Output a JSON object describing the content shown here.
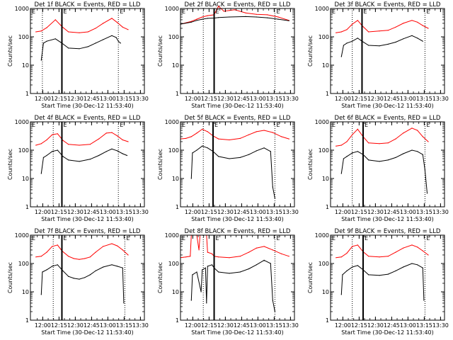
{
  "figure": {
    "event_marker_left": "E",
    "event_marker_right": "E"
  },
  "chart_data": [
    {
      "type": "line",
      "title": "Det 1f BLACK = Events, RED = LLD",
      "xlabel": "Start Time (30-Dec-12 11:53:40)",
      "ylabel": "Counts/sec",
      "x_ticks": [
        "12:00",
        "12:15",
        "12:30",
        "12:45",
        "13:00",
        "13:15",
        "13:30"
      ],
      "y_ticks": [
        "1",
        "10",
        "100",
        "1000"
      ],
      "xlim_min": [
        -5,
        100
      ],
      "ylim": [
        1,
        1000
      ],
      "y_scale": "log",
      "vlines_dotted_min": [
        6,
        76
      ],
      "vline_solid_min": [
        24
      ],
      "series": [
        {
          "name": "LLD",
          "color": "#ff0000",
          "x": [
            0,
            5,
            10,
            18,
            24,
            30,
            40,
            48,
            55,
            62,
            70,
            75,
            80,
            85
          ],
          "y": [
            150,
            160,
            210,
            400,
            230,
            150,
            140,
            150,
            200,
            300,
            450,
            320,
            220,
            180
          ]
        },
        {
          "name": "Events",
          "color": "#000000",
          "x": [
            5,
            7,
            10,
            18,
            24,
            30,
            40,
            48,
            55,
            62,
            70,
            74,
            76,
            78
          ],
          "y": [
            15,
            60,
            70,
            85,
            60,
            40,
            38,
            45,
            60,
            80,
            110,
            95,
            70,
            60
          ]
        }
      ]
    },
    {
      "type": "line",
      "title": "Det 2f BLACK = Events, RED = LLD",
      "xlabel": "Start Time (30-Dec-12 11:53:40)",
      "ylabel": "Counts/sec",
      "x_ticks": [
        "12:00",
        "12:15",
        "12:30",
        "12:45",
        "13:00",
        "13:15",
        "13:30"
      ],
      "y_ticks": [
        "1",
        "10",
        "100",
        "1000"
      ],
      "xlim_min": [
        -5,
        100
      ],
      "ylim": [
        1,
        1000
      ],
      "y_scale": "log",
      "vlines_dotted_min": [
        16,
        82
      ],
      "vline_solid_min": [
        26
      ],
      "series": [
        {
          "name": "LLD",
          "color": "#ff0000",
          "x": [
            -5,
            5,
            10,
            15,
            20,
            26,
            30,
            35,
            40,
            45,
            55,
            65,
            75,
            85,
            95
          ],
          "y": [
            280,
            350,
            420,
            500,
            560,
            600,
            1200,
            800,
            850,
            900,
            700,
            620,
            600,
            500,
            380
          ]
        },
        {
          "name": "Events",
          "color": "#000000",
          "x": [
            -5,
            5,
            10,
            15,
            20,
            26,
            30,
            40,
            55,
            65,
            75,
            85,
            95
          ],
          "y": [
            280,
            330,
            380,
            420,
            450,
            460,
            480,
            500,
            520,
            500,
            470,
            420,
            370
          ]
        }
      ]
    },
    {
      "type": "line",
      "title": "Det 3f BLACK = Events, RED = LLD",
      "xlabel": "Start Time (30-Dec-12 11:53:40)",
      "ylabel": "Counts/sec",
      "x_ticks": [
        "12:00",
        "12:15",
        "12:30",
        "12:45",
        "13:00",
        "13:15",
        "13:30"
      ],
      "y_ticks": [
        "1",
        "10",
        "100",
        "1000"
      ],
      "xlim_min": [
        -5,
        100
      ],
      "ylim": [
        1,
        1000
      ],
      "y_scale": "log",
      "vlines_dotted_min": [
        15,
        82
      ],
      "vline_solid_min": [
        24
      ],
      "series": [
        {
          "name": "LLD",
          "color": "#ff0000",
          "x": [
            0,
            5,
            10,
            15,
            20,
            24,
            30,
            40,
            48,
            55,
            62,
            70,
            75,
            80,
            85
          ],
          "y": [
            140,
            150,
            180,
            280,
            380,
            250,
            150,
            160,
            170,
            220,
            300,
            380,
            330,
            250,
            200
          ]
        },
        {
          "name": "Events",
          "color": "#000000",
          "x": [
            5,
            7,
            10,
            15,
            20,
            24,
            30,
            40,
            48,
            55,
            62,
            70,
            75,
            80
          ],
          "y": [
            20,
            50,
            60,
            70,
            90,
            70,
            50,
            48,
            55,
            65,
            85,
            110,
            90,
            70
          ]
        }
      ]
    },
    {
      "type": "line",
      "title": "Det 4f BLACK = Events, RED = LLD",
      "xlabel": "Start Time (30-Dec-12 11:53:40)",
      "ylabel": "Counts/sec",
      "x_ticks": [
        "12:00",
        "12:15",
        "12:30",
        "12:45",
        "13:00",
        "13:15",
        "13:30"
      ],
      "y_ticks": [
        "1",
        "10",
        "100",
        "1000"
      ],
      "xlim_min": [
        -5,
        100
      ],
      "ylim": [
        1,
        1000
      ],
      "y_scale": "log",
      "vlines_dotted_min": [
        16,
        76
      ],
      "vline_solid_min": [
        24
      ],
      "series": [
        {
          "name": "LLD",
          "color": "#ff0000",
          "x": [
            0,
            5,
            10,
            15,
            20,
            25,
            30,
            40,
            50,
            58,
            65,
            70,
            75,
            80,
            85
          ],
          "y": [
            150,
            170,
            230,
            350,
            380,
            220,
            160,
            150,
            160,
            250,
            400,
            420,
            320,
            230,
            200
          ]
        },
        {
          "name": "Events",
          "color": "#000000",
          "x": [
            5,
            7,
            10,
            15,
            20,
            25,
            30,
            40,
            50,
            58,
            65,
            70,
            75,
            80,
            84
          ],
          "y": [
            15,
            55,
            65,
            90,
            100,
            60,
            45,
            40,
            48,
            65,
            90,
            110,
            95,
            75,
            65
          ]
        }
      ]
    },
    {
      "type": "line",
      "title": "Det 5f BLACK = Events, RED = LLD",
      "xlabel": "Start Time (30-Dec-12 11:53:40)",
      "ylabel": "Counts/sec",
      "x_ticks": [
        "12:00",
        "12:15",
        "12:30",
        "12:45",
        "13:00",
        "13:15",
        "13:30"
      ],
      "y_ticks": [
        "1",
        "10",
        "100",
        "1000"
      ],
      "xlim_min": [
        -5,
        100
      ],
      "ylim": [
        1,
        1000
      ],
      "y_scale": "log",
      "vlines_dotted_min": [
        16,
        82
      ],
      "vline_solid_min": [
        25
      ],
      "series": [
        {
          "name": "LLD",
          "color": "#ff0000",
          "x": [
            -5,
            0,
            5,
            10,
            15,
            20,
            25,
            30,
            40,
            50,
            58,
            65,
            72,
            80,
            88,
            95
          ],
          "y": [
            250,
            260,
            300,
            400,
            550,
            450,
            320,
            250,
            230,
            260,
            350,
            450,
            500,
            420,
            300,
            250
          ]
        },
        {
          "name": "Events",
          "color": "#000000",
          "x": [
            5,
            6,
            10,
            15,
            20,
            25,
            30,
            40,
            50,
            58,
            65,
            72,
            78,
            80,
            82
          ],
          "y": [
            10,
            80,
            100,
            140,
            120,
            90,
            60,
            50,
            55,
            70,
            95,
            120,
            90,
            5,
            2
          ]
        }
      ]
    },
    {
      "type": "line",
      "title": "Det 6f BLACK = Events, RED = LLD",
      "xlabel": "Start Time (30-Dec-12 11:53:40)",
      "ylabel": "Counts/sec",
      "x_ticks": [
        "12:00",
        "12:15",
        "12:30",
        "12:45",
        "13:00",
        "13:15",
        "13:30"
      ],
      "y_ticks": [
        "1",
        "10",
        "100",
        "1000"
      ],
      "xlim_min": [
        -5,
        100
      ],
      "ylim": [
        1,
        1000
      ],
      "y_scale": "log",
      "vlines_dotted_min": [
        15,
        82
      ],
      "vline_solid_min": [
        25
      ],
      "series": [
        {
          "name": "LLD",
          "color": "#ff0000",
          "x": [
            0,
            5,
            10,
            15,
            20,
            25,
            30,
            40,
            48,
            55,
            62,
            70,
            75,
            80,
            85
          ],
          "y": [
            140,
            150,
            200,
            350,
            550,
            300,
            180,
            170,
            180,
            250,
            400,
            600,
            500,
            300,
            200
          ]
        },
        {
          "name": "Events",
          "color": "#000000",
          "x": [
            5,
            7,
            10,
            15,
            20,
            25,
            30,
            40,
            48,
            55,
            62,
            70,
            75,
            80,
            82,
            84
          ],
          "y": [
            15,
            50,
            60,
            80,
            90,
            70,
            45,
            40,
            45,
            55,
            75,
            100,
            90,
            70,
            20,
            3
          ]
        }
      ]
    },
    {
      "type": "line",
      "title": "Det 7f BLACK = Events, RED = LLD",
      "xlabel": "Start Time (30-Dec-12 11:53:40)",
      "ylabel": "Counts/sec",
      "x_ticks": [
        "12:00",
        "12:15",
        "12:30",
        "12:45",
        "13:00",
        "13:15",
        "13:30"
      ],
      "y_ticks": [
        "1",
        "10",
        "100",
        "1000"
      ],
      "xlim_min": [
        -5,
        100
      ],
      "ylim": [
        1,
        1000
      ],
      "y_scale": "log",
      "vlines_dotted_min": [
        16,
        82
      ],
      "vline_solid_min": [
        24
      ],
      "series": [
        {
          "name": "LLD",
          "color": "#ff0000",
          "x": [
            0,
            5,
            10,
            15,
            20,
            24,
            30,
            35,
            40,
            45,
            50,
            55,
            62,
            70,
            75,
            80,
            85
          ],
          "y": [
            170,
            180,
            250,
            400,
            450,
            280,
            180,
            150,
            140,
            150,
            170,
            250,
            400,
            500,
            420,
            300,
            200
          ]
        },
        {
          "name": "Events",
          "color": "#000000",
          "x": [
            5,
            6,
            10,
            15,
            20,
            24,
            30,
            35,
            40,
            45,
            50,
            55,
            62,
            70,
            75,
            80,
            81
          ],
          "y": [
            8,
            50,
            60,
            80,
            90,
            60,
            35,
            30,
            28,
            32,
            40,
            55,
            75,
            90,
            80,
            70,
            4
          ]
        }
      ]
    },
    {
      "type": "line",
      "title": "Det 8f BLACK = Events, RED = LLD",
      "xlabel": "Start Time (30-Dec-12 11:53:40)",
      "ylabel": "Counts/sec",
      "x_ticks": [
        "12:00",
        "12:15",
        "12:30",
        "12:45",
        "13:00",
        "13:15",
        "13:30"
      ],
      "y_ticks": [
        "1",
        "10",
        "100",
        "1000"
      ],
      "xlim_min": [
        -5,
        100
      ],
      "ylim": [
        1,
        1000
      ],
      "y_scale": "log",
      "vlines_dotted_min": [
        16,
        82
      ],
      "vline_solid_min": [
        26
      ],
      "series": [
        {
          "name": "LLD",
          "color": "#ff0000",
          "x": [
            -5,
            0,
            4,
            5,
            10,
            12,
            13,
            15,
            19,
            20,
            24,
            26,
            30,
            40,
            50,
            58,
            65,
            72,
            80,
            88,
            95
          ],
          "y": [
            160,
            170,
            180,
            1000,
            1000,
            300,
            1000,
            1000,
            1000,
            250,
            220,
            180,
            170,
            160,
            180,
            250,
            350,
            400,
            300,
            220,
            180
          ]
        },
        {
          "name": "Events",
          "color": "#000000",
          "x": [
            5,
            6,
            10,
            14,
            15,
            18,
            19,
            20,
            24,
            26,
            30,
            40,
            50,
            58,
            65,
            72,
            78,
            80,
            82
          ],
          "y": [
            5,
            40,
            50,
            10,
            60,
            70,
            4,
            80,
            90,
            70,
            50,
            45,
            50,
            65,
            90,
            130,
            100,
            5,
            2
          ]
        }
      ]
    },
    {
      "type": "line",
      "title": "Det 9f BLACK = Events, RED = LLD",
      "xlabel": "Start Time (30-Dec-12 11:53:40)",
      "ylabel": "Counts/sec",
      "x_ticks": [
        "12:00",
        "12:15",
        "12:30",
        "12:45",
        "13:00",
        "13:15",
        "13:30"
      ],
      "y_ticks": [
        "1",
        "10",
        "100",
        "1000"
      ],
      "xlim_min": [
        -5,
        100
      ],
      "ylim": [
        1,
        1000
      ],
      "y_scale": "log",
      "vlines_dotted_min": [
        15,
        82
      ],
      "vline_solid_min": [
        25
      ],
      "series": [
        {
          "name": "LLD",
          "color": "#ff0000",
          "x": [
            0,
            5,
            10,
            15,
            20,
            25,
            30,
            40,
            48,
            55,
            62,
            70,
            75,
            80,
            85
          ],
          "y": [
            160,
            170,
            230,
            400,
            450,
            260,
            180,
            170,
            180,
            250,
            350,
            450,
            380,
            280,
            200
          ]
        },
        {
          "name": "Events",
          "color": "#000000",
          "x": [
            5,
            6,
            10,
            15,
            20,
            25,
            30,
            40,
            48,
            55,
            62,
            70,
            75,
            80,
            81
          ],
          "y": [
            8,
            40,
            55,
            75,
            85,
            60,
            40,
            38,
            42,
            55,
            75,
            100,
            90,
            70,
            5
          ]
        }
      ]
    }
  ]
}
